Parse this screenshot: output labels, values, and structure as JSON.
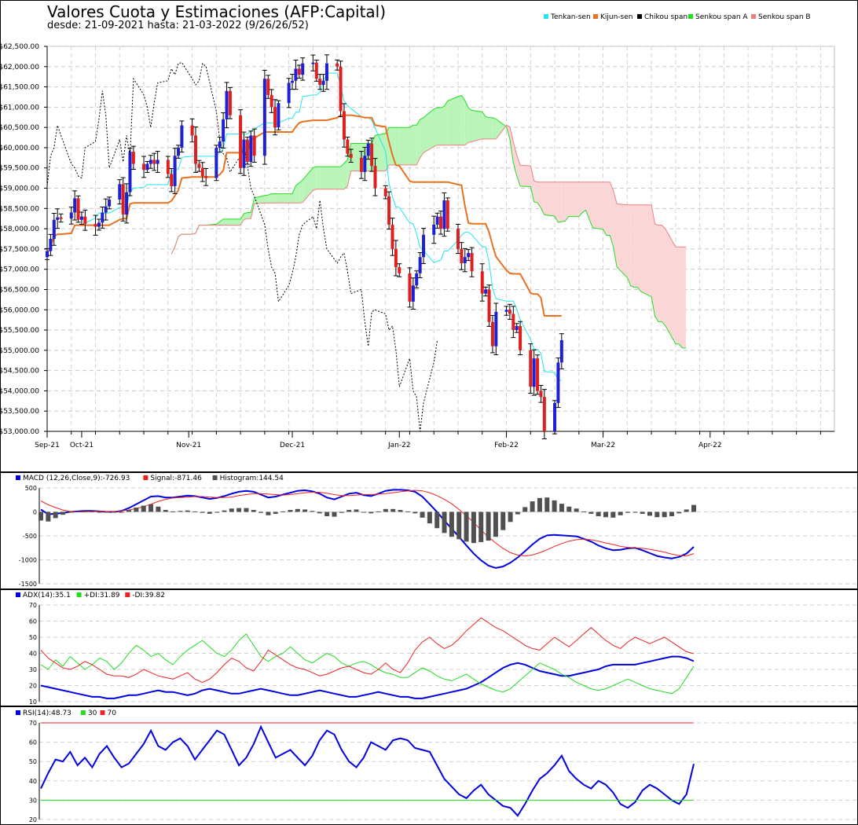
{
  "header": {
    "title": "Valores Cuota y Estimaciones (AFP:Capital)",
    "subtitle": "desde: 21-09-2021 hasta: 21-03-2022 (9/26/26/52)"
  },
  "colors": {
    "tenkan": "#22e6f0",
    "kijun": "#e8711f",
    "chikou": "#000000",
    "senkou_a": "#22dd22",
    "senkou_b": "#f08080",
    "cloud_bull": "#b9f5b9",
    "cloud_bear": "#fbd6d6",
    "candle_up": "#1f1fd6",
    "candle_down": "#e01f1f",
    "wick": "#000000",
    "macd": "#0000e0",
    "signal": "#ee2222",
    "histogram": "#505050",
    "adx": "#0000e0",
    "plus_di": "#22dd22",
    "minus_di": "#ee2222",
    "rsi": "#0000e0",
    "rsi30": "#22dd22",
    "rsi70": "#ee2222"
  },
  "chart_data": [
    {
      "type": "candlestick",
      "title": "Valores Cuota y Estimaciones (AFP:Capital)",
      "subtitle": "desde: 21-09-2021 hasta: 21-03-2022 (9/26/26/52)",
      "legend_placement": "top-right",
      "legend": [
        "Tenkan-sen",
        "Kijun-sen",
        "Chikou span",
        "Senkou span A",
        "Senkou span B"
      ],
      "ylim": [
        53000,
        62500
      ],
      "y_ticks": [
        53000,
        53500,
        54000,
        54500,
        55000,
        55500,
        56000,
        56500,
        57000,
        57500,
        58000,
        58500,
        59000,
        59500,
        60000,
        60500,
        61000,
        61500,
        62000,
        62500
      ],
      "y_tick_labels": [
        "$53,000.00",
        "$53,500.00",
        "$54,000.00",
        "$54,500.00",
        "$55,000.00",
        "$55,500.00",
        "$56,000.00",
        "$56,500.00",
        "$57,000.00",
        "$57,500.00",
        "$58,000.00",
        "$58,500.00",
        "$59,000.00",
        "$59,500.00",
        "$60,000.00",
        "$60,500.00",
        "$61,000.00",
        "$61,500.00",
        "$62,000.00",
        "$62,500.00"
      ],
      "x_ticks": [
        {
          "label": "Sep-21",
          "day": 0
        },
        {
          "label": "Oct-21",
          "day": 10
        },
        {
          "label": "Nov-21",
          "day": 41
        },
        {
          "label": "Dec-21",
          "day": 71
        },
        {
          "label": "Jan-22",
          "day": 102
        },
        {
          "label": "Feb-22",
          "day": 133
        },
        {
          "label": "Mar-22",
          "day": 161
        },
        {
          "label": "Apr-22",
          "day": 192
        }
      ],
      "x_range_days": [
        0,
        228
      ],
      "grid": true,
      "candles_close": [
        57450,
        57750,
        58220,
        58280,
        58250,
        58400,
        58750,
        58220,
        58300,
        58120,
        58050,
        58150,
        58400,
        58550,
        58720,
        59100,
        58350,
        58900,
        59900,
        59600,
        59450,
        59600,
        59700,
        59600,
        59700,
        59350,
        59050,
        59800,
        60000,
        60550,
        60300,
        59600,
        59500,
        59300,
        59250,
        60000,
        60150,
        60700,
        61400,
        60800,
        59500,
        60200,
        59650,
        60300,
        59800,
        61700,
        61300,
        61000,
        60500,
        61100,
        61600,
        61650,
        61950,
        61800,
        62080,
        62100,
        61700,
        61550,
        61650,
        62080,
        62000,
        60900,
        60200,
        59850,
        59750,
        59400,
        59800,
        60100,
        59550,
        59000,
        58800,
        58100,
        57500,
        57050,
        56900,
        56200,
        56600,
        56900,
        57300,
        57850,
        58100,
        58300,
        58000,
        58700,
        58000,
        57500,
        57150,
        57300,
        57400,
        56950,
        56400,
        56500,
        55700,
        55100,
        55950,
        56000,
        55900,
        55500,
        55600,
        55000,
        54100,
        54800,
        54000,
        53850,
        53000,
        53700,
        54700,
        55250
      ]
    },
    {
      "type": "line",
      "legend_placement": "top-left",
      "series": [
        {
          "name": "MACD (12,26,Close,9):-726.93",
          "values": [
            50,
            -50,
            -40,
            -20,
            0,
            10,
            20,
            20,
            10,
            0,
            0,
            20,
            80,
            160,
            240,
            320,
            330,
            300,
            300,
            320,
            340,
            330,
            300,
            270,
            290,
            330,
            380,
            420,
            440,
            420,
            360,
            300,
            320,
            360,
            400,
            440,
            450,
            430,
            380,
            300,
            260,
            320,
            380,
            400,
            350,
            330,
            380,
            440,
            460,
            460,
            450,
            420,
            320,
            160,
            0,
            -180,
            -350,
            -520,
            -700,
            -870,
            -1010,
            -1120,
            -1170,
            -1140,
            -1060,
            -950,
            -820,
            -680,
            -560,
            -490,
            -480,
            -490,
            -500,
            -510,
            -560,
            -620,
            -700,
            -760,
            -800,
            -790,
            -760,
            -750,
            -800,
            -860,
            -920,
            -950,
            -970,
            -940,
            -870,
            -730
          ]
        },
        {
          "name": "Signal:-871.46",
          "values": [
            230,
            150,
            90,
            40,
            10,
            0,
            0,
            10,
            10,
            10,
            10,
            20,
            40,
            70,
            110,
            160,
            220,
            260,
            290,
            300,
            310,
            320,
            320,
            310,
            300,
            300,
            310,
            340,
            360,
            380,
            380,
            370,
            360,
            350,
            360,
            380,
            400,
            410,
            410,
            390,
            360,
            340,
            340,
            350,
            360,
            360,
            370,
            380,
            400,
            420,
            440,
            450,
            440,
            400,
            340,
            260,
            170,
            50,
            -80,
            -220,
            -380,
            -520,
            -650,
            -760,
            -850,
            -900,
            -920,
            -900,
            -850,
            -790,
            -720,
            -660,
            -610,
            -580,
            -570,
            -580,
            -610,
            -650,
            -680,
            -720,
            -740,
            -750,
            -760,
            -780,
            -810,
            -840,
            -880,
            -910,
            -920,
            -870
          ]
        },
        {
          "name": "Histogram:144.54",
          "values": [
            -180,
            -200,
            -130,
            -60,
            -10,
            10,
            20,
            10,
            0,
            -10,
            -10,
            0,
            40,
            90,
            130,
            160,
            110,
            40,
            10,
            20,
            30,
            10,
            -20,
            -40,
            -10,
            30,
            70,
            80,
            80,
            40,
            -20,
            -70,
            -40,
            10,
            40,
            60,
            50,
            20,
            -30,
            -90,
            -100,
            -20,
            40,
            50,
            -10,
            -30,
            10,
            60,
            60,
            40,
            10,
            -30,
            -120,
            -240,
            -340,
            -440,
            -520,
            -570,
            -620,
            -650,
            -630,
            -600,
            -520,
            -380,
            -210,
            -50,
            100,
            220,
            290,
            300,
            240,
            170,
            110,
            70,
            10,
            -40,
            -90,
            -110,
            -120,
            -70,
            -20,
            0,
            -40,
            -80,
            -110,
            -110,
            -90,
            -30,
            50,
            145
          ]
        }
      ],
      "ylim": [
        -1500,
        500
      ],
      "y_ticks": [
        -1500,
        -1000,
        -500,
        0,
        500
      ],
      "grid": true
    },
    {
      "type": "line",
      "legend_placement": "top-left",
      "series": [
        {
          "name": "ADX(14):35.1",
          "values": [
            20,
            19,
            18,
            17,
            16,
            15,
            14,
            13,
            13,
            12,
            12,
            13,
            14,
            14,
            15,
            16,
            17,
            16,
            16,
            15,
            14,
            15,
            17,
            18,
            17,
            16,
            15,
            15,
            16,
            17,
            18,
            17,
            16,
            15,
            14,
            14,
            15,
            16,
            17,
            16,
            15,
            14,
            13,
            13,
            14,
            15,
            16,
            15,
            14,
            13,
            13,
            12,
            12,
            13,
            14,
            15,
            16,
            17,
            18,
            20,
            22,
            25,
            28,
            31,
            33,
            34,
            33,
            31,
            29,
            28,
            27,
            26,
            26,
            27,
            28,
            29,
            30,
            32,
            33,
            33,
            33,
            33,
            34,
            35,
            36,
            37,
            38,
            38,
            37,
            35.1
          ]
        },
        {
          "name": "+DI:31.89",
          "values": [
            33,
            30,
            36,
            32,
            38,
            34,
            30,
            33,
            37,
            35,
            30,
            34,
            40,
            45,
            42,
            38,
            40,
            36,
            33,
            38,
            42,
            45,
            48,
            44,
            40,
            38,
            42,
            48,
            52,
            45,
            38,
            35,
            38,
            40,
            44,
            40,
            36,
            34,
            37,
            40,
            38,
            34,
            32,
            34,
            35,
            33,
            30,
            28,
            27,
            25,
            25,
            28,
            31,
            29,
            26,
            24,
            23,
            25,
            27,
            24,
            21,
            19,
            17,
            16,
            18,
            22,
            26,
            30,
            34,
            32,
            30,
            27,
            25,
            22,
            20,
            18,
            17,
            18,
            20,
            22,
            24,
            22,
            20,
            18,
            17,
            16,
            15,
            18,
            25,
            31.89
          ]
        },
        {
          "name": "-DI:39.82",
          "values": [
            42,
            37,
            34,
            31,
            30,
            32,
            35,
            33,
            30,
            27,
            26,
            26,
            25,
            27,
            30,
            28,
            26,
            25,
            24,
            26,
            28,
            24,
            22,
            24,
            28,
            33,
            37,
            35,
            31,
            29,
            35,
            42,
            39,
            36,
            33,
            31,
            30,
            28,
            26,
            27,
            29,
            31,
            32,
            30,
            28,
            27,
            30,
            34,
            30,
            28,
            34,
            42,
            47,
            50,
            46,
            43,
            45,
            49,
            54,
            58,
            62,
            59,
            56,
            54,
            51,
            48,
            45,
            43,
            42,
            46,
            50,
            47,
            44,
            48,
            52,
            56,
            52,
            48,
            45,
            43,
            47,
            50,
            48,
            46,
            48,
            50,
            47,
            44,
            41,
            39.82
          ]
        }
      ],
      "ylim": [
        10,
        70
      ],
      "y_ticks": [
        10,
        20,
        30,
        40,
        50,
        60,
        70
      ],
      "grid": true
    },
    {
      "type": "line",
      "legend_placement": "top-left",
      "series": [
        {
          "name": "RSI(14):48.73",
          "values": [
            36,
            44,
            51,
            50,
            55,
            48,
            52,
            47,
            54,
            58,
            52,
            47,
            49,
            54,
            59,
            66,
            58,
            56,
            60,
            62,
            58,
            51,
            56,
            61,
            66,
            64,
            56,
            48,
            52,
            59,
            68,
            60,
            52,
            54,
            56,
            52,
            48,
            53,
            61,
            66,
            64,
            56,
            50,
            47,
            52,
            60,
            58,
            56,
            61,
            62,
            61,
            57,
            56,
            55,
            48,
            41,
            37,
            33,
            31,
            35,
            38,
            33,
            30,
            27,
            26,
            22,
            28,
            35,
            41,
            44,
            48,
            53,
            45,
            41,
            38,
            36,
            40,
            38,
            34,
            28,
            26,
            29,
            35,
            38,
            36,
            33,
            30,
            28,
            33,
            48.73
          ]
        },
        {
          "name": "30",
          "values": [
            30,
            30
          ]
        },
        {
          "name": "70",
          "values": [
            70,
            70
          ]
        }
      ],
      "ylim": [
        20,
        70
      ],
      "y_ticks": [
        20,
        30,
        40,
        50,
        60,
        70
      ],
      "grid": true
    }
  ]
}
